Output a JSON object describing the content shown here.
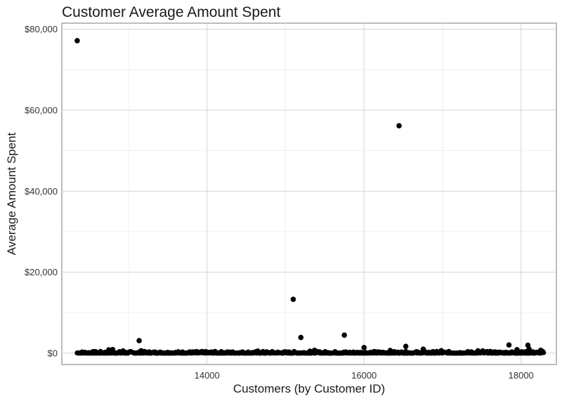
{
  "chart_data": {
    "type": "scatter",
    "title": "Customer Average Amount Spent",
    "xlabel": "Customers (by Customer ID)",
    "ylabel": "Average Amount Spent",
    "xlim": [
      12150,
      18450
    ],
    "ylim": [
      -2800,
      81500
    ],
    "x_ticks": [
      14000,
      16000,
      18000
    ],
    "x_tick_labels": [
      "14000",
      "16000",
      "18000"
    ],
    "y_ticks": [
      0,
      20000,
      40000,
      60000,
      80000
    ],
    "y_tick_labels": [
      "$0",
      "$20,000",
      "$40,000",
      "$60,000",
      "$80,000"
    ],
    "grid": true,
    "point_color": "#000000",
    "baseline_band": {
      "x_start": 12346,
      "x_end": 18287,
      "typical_max": 450
    },
    "points": [
      {
        "x": 12346,
        "y": 77183
      },
      {
        "x": 16446,
        "y": 56158
      },
      {
        "x": 15098,
        "y": 13305
      },
      {
        "x": 15749,
        "y": 4453
      },
      {
        "x": 15195,
        "y": 3861
      },
      {
        "x": 13135,
        "y": 3096
      },
      {
        "x": 17846,
        "y": 2033
      },
      {
        "x": 18087,
        "y": 1964
      },
      {
        "x": 16532,
        "y": 1688
      },
      {
        "x": 16000,
        "y": 1377
      },
      {
        "x": 18102,
        "y": 1000
      },
      {
        "x": 17949,
        "y": 850
      },
      {
        "x": 16754,
        "y": 980
      },
      {
        "x": 12798,
        "y": 900
      },
      {
        "x": 12748,
        "y": 820
      },
      {
        "x": 15369,
        "y": 700
      },
      {
        "x": 13160,
        "y": 600
      },
      {
        "x": 16333,
        "y": 650
      },
      {
        "x": 16984,
        "y": 620
      },
      {
        "x": 17450,
        "y": 580
      },
      {
        "x": 18251,
        "y": 700
      },
      {
        "x": 14646,
        "y": 500
      },
      {
        "x": 12931,
        "y": 550
      },
      {
        "x": 17511,
        "y": 560
      },
      {
        "x": 15311,
        "y": 480
      }
    ]
  }
}
